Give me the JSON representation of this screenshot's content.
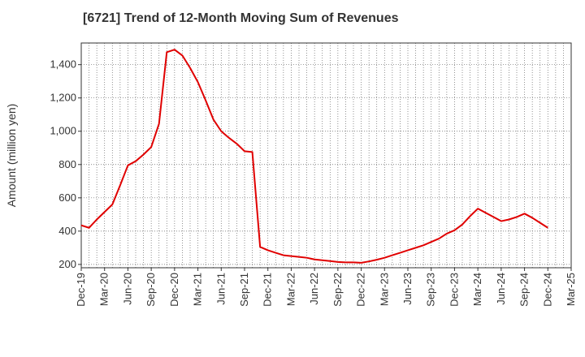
{
  "chart_data": {
    "type": "line",
    "title": "[6721]  Trend of 12-Month Moving Sum of Revenues",
    "xlabel": "",
    "ylabel": "Amount (million yen)",
    "ylim": [
      180,
      1530
    ],
    "yticks": [
      200,
      400,
      600,
      800,
      1000,
      1200,
      1400
    ],
    "ytick_labels": [
      "200",
      "400",
      "600",
      "800",
      "1,000",
      "1,200",
      "1,400"
    ],
    "xtick_labels": [
      "Dec-19",
      "Mar-20",
      "Jun-20",
      "Sep-20",
      "Dec-20",
      "Mar-21",
      "Jun-21",
      "Sep-21",
      "Dec-21",
      "Mar-22",
      "Jun-22",
      "Sep-22",
      "Dec-22",
      "Mar-23",
      "Jun-23",
      "Sep-23",
      "Dec-23",
      "Mar-24",
      "Jun-24",
      "Sep-24",
      "Dec-24",
      "Mar-25"
    ],
    "grid": true,
    "color": "#e00000",
    "x": [
      "Dec-19",
      "Jan-20",
      "Feb-20",
      "Mar-20",
      "Apr-20",
      "May-20",
      "Jun-20",
      "Jul-20",
      "Aug-20",
      "Sep-20",
      "Oct-20",
      "Nov-20",
      "Dec-20",
      "Jan-21",
      "Feb-21",
      "Mar-21",
      "Apr-21",
      "May-21",
      "Jun-21",
      "Jul-21",
      "Aug-21",
      "Sep-21",
      "Oct-21",
      "Nov-21",
      "Dec-21",
      "Jan-22",
      "Feb-22",
      "Mar-22",
      "Apr-22",
      "May-22",
      "Jun-22",
      "Jul-22",
      "Aug-22",
      "Sep-22",
      "Oct-22",
      "Nov-22",
      "Dec-22",
      "Jan-23",
      "Feb-23",
      "Mar-23",
      "Apr-23",
      "May-23",
      "Jun-23",
      "Jul-23",
      "Aug-23",
      "Sep-23",
      "Oct-23",
      "Nov-23",
      "Dec-23",
      "Jan-24",
      "Feb-24",
      "Mar-24",
      "Apr-24",
      "May-24",
      "Jun-24",
      "Jul-24",
      "Aug-24",
      "Sep-24",
      "Oct-24",
      "Nov-24",
      "Dec-24"
    ],
    "values": [
      435,
      420,
      470,
      515,
      560,
      675,
      795,
      820,
      860,
      905,
      1045,
      1475,
      1490,
      1455,
      1380,
      1295,
      1185,
      1070,
      1000,
      960,
      925,
      880,
      875,
      305,
      285,
      270,
      255,
      250,
      245,
      240,
      230,
      225,
      220,
      215,
      212,
      212,
      210,
      218,
      228,
      240,
      255,
      270,
      285,
      300,
      315,
      335,
      355,
      385,
      405,
      440,
      490,
      535,
      510,
      485,
      460,
      470,
      485,
      505,
      480,
      450,
      420
    ]
  }
}
